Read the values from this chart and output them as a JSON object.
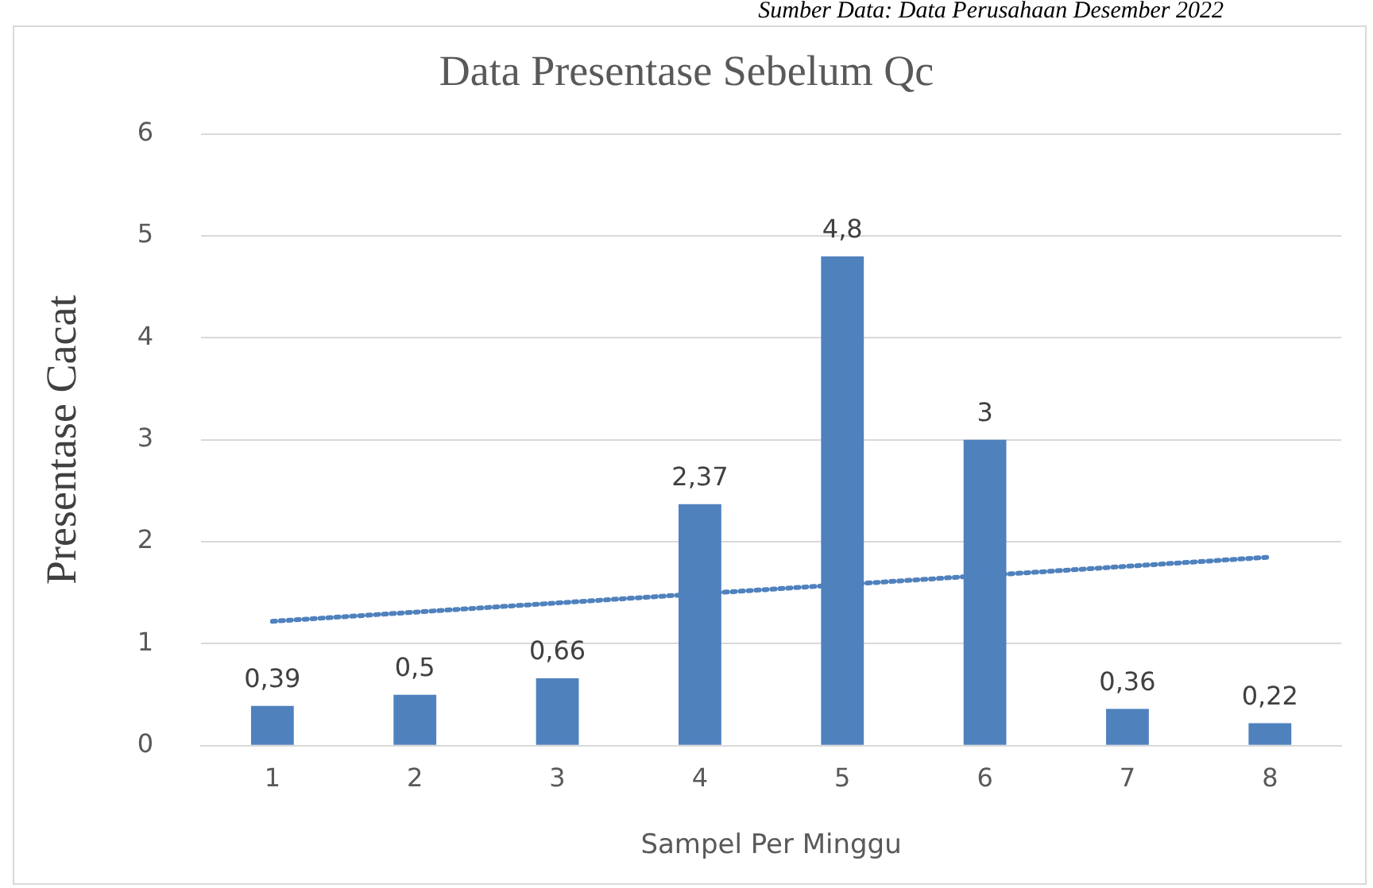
{
  "chart_data": {
    "type": "bar",
    "title": "Data Presentase Sebelum Qc",
    "xlabel": "Sampel Per Minggu",
    "ylabel": "Presentase Cacat",
    "annotations": [
      "Sumber Data: Data Perusahaan Desember 2022"
    ],
    "categories": [
      "1",
      "2",
      "3",
      "4",
      "5",
      "6",
      "7",
      "8"
    ],
    "series": [
      {
        "color": "#4f81bd",
        "values": [
          0.39,
          0.5,
          0.66,
          2.37,
          4.8,
          3,
          0.36,
          0.22
        ],
        "value_labels": [
          "0,39",
          "0,5",
          "0,66",
          "2,37",
          "4,8",
          "3",
          "0,36",
          "0,22"
        ]
      },
      {
        "type": "line",
        "color": "#4f81bd",
        "x": [
          "1",
          "8"
        ],
        "values": [
          1.22,
          1.85
        ],
        "line_style": "dotted",
        "marker": "none"
      }
    ],
    "ylim": [
      0,
      6
    ],
    "yticks": [
      0,
      1,
      2,
      3,
      4,
      5,
      6
    ],
    "grid": "y",
    "legend": false
  }
}
